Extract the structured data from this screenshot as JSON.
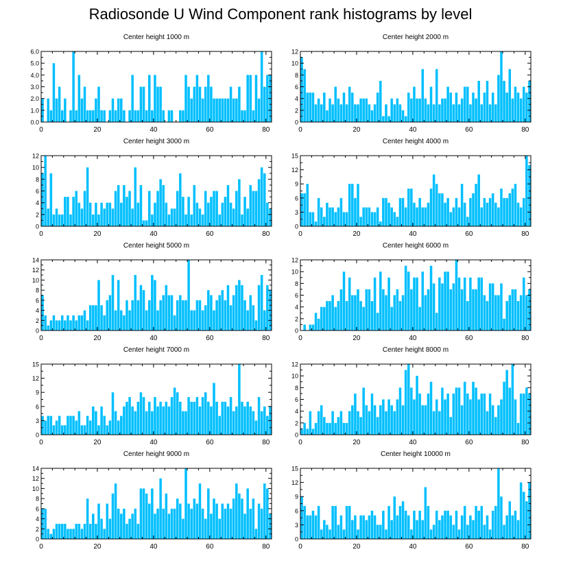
{
  "figure": {
    "title": "Radiosonde U Wind Component rank histograms by level",
    "bar_color": "#00bfff",
    "bar_edge_color": "#ffffff",
    "frame_color": "#000000"
  },
  "chart_data": [
    {
      "type": "bar",
      "title": "Center height 1000 m",
      "xlabel": "",
      "ylabel": "",
      "xlim": [
        0,
        82
      ],
      "ylim": [
        0,
        6
      ],
      "xticks": [
        0,
        20,
        40,
        60,
        80
      ],
      "xtick_labels": [
        "0",
        "20",
        "40",
        "60",
        "80"
      ],
      "yticks": [
        0,
        1,
        2,
        3,
        4,
        5,
        6
      ],
      "ytick_labels": [
        "0.0",
        "1.0",
        "2.0",
        "3.0",
        "4.0",
        "5.0",
        "6.0"
      ],
      "ytick_side": "left",
      "values": [
        2,
        0,
        2,
        1,
        5,
        2,
        3,
        1,
        2,
        0,
        1,
        6,
        1,
        4,
        2,
        3,
        1,
        1,
        1,
        2,
        3,
        1,
        1,
        0,
        1,
        2,
        1,
        2,
        2,
        1,
        0,
        1,
        4,
        1,
        1,
        3,
        3,
        1,
        4,
        1,
        4,
        3,
        3,
        1,
        0,
        1,
        1,
        0,
        0,
        1,
        1,
        4,
        3,
        2,
        3,
        4,
        3,
        2,
        3,
        4,
        3,
        2,
        2,
        2,
        2,
        2,
        2,
        3,
        2,
        2,
        3,
        1,
        1,
        4,
        4,
        1,
        4,
        2,
        6,
        3,
        4,
        4
      ]
    },
    {
      "type": "bar",
      "title": "Center height 2000 m",
      "xlabel": "",
      "ylabel": "",
      "xlim": [
        0,
        82
      ],
      "ylim": [
        0,
        12
      ],
      "xticks": [
        0,
        20,
        40,
        60,
        80
      ],
      "xtick_labels": [
        "0",
        "20",
        "40",
        "60",
        "80"
      ],
      "yticks": [
        0,
        2,
        4,
        6,
        8,
        10,
        12
      ],
      "ytick_labels": [
        "0",
        "2",
        "4",
        "6",
        "8",
        "10",
        "12"
      ],
      "ytick_side": "right",
      "values": [
        11,
        9,
        5,
        5,
        5,
        3,
        4,
        3,
        5,
        2,
        4,
        3,
        6,
        4,
        3,
        5,
        3,
        6,
        5,
        3,
        3,
        4,
        4,
        4,
        3,
        2,
        3,
        5,
        7,
        1,
        3,
        1,
        4,
        3,
        4,
        3,
        2,
        1,
        5,
        4,
        6,
        4,
        4,
        9,
        4,
        3,
        6,
        3,
        9,
        3,
        4,
        4,
        6,
        5,
        3,
        5,
        3,
        4,
        6,
        6,
        3,
        5,
        4,
        7,
        3,
        5,
        7,
        3,
        5,
        3,
        8,
        12,
        7,
        5,
        9,
        4,
        6,
        5,
        4,
        6,
        5,
        7
      ]
    },
    {
      "type": "bar",
      "title": "Center height 3000 m",
      "xlabel": "",
      "ylabel": "",
      "xlim": [
        0,
        82
      ],
      "ylim": [
        0,
        12
      ],
      "xticks": [
        0,
        20,
        40,
        60,
        80
      ],
      "xtick_labels": [
        "0",
        "20",
        "40",
        "60",
        "80"
      ],
      "yticks": [
        0,
        2,
        4,
        6,
        8,
        10,
        12
      ],
      "ytick_labels": [
        "0",
        "2",
        "4",
        "6",
        "8",
        "10",
        "12"
      ],
      "ytick_side": "left",
      "values": [
        9,
        12,
        3,
        9,
        2,
        3,
        2,
        2,
        5,
        5,
        2,
        5,
        6,
        4,
        3,
        6,
        10,
        4,
        2,
        4,
        2,
        4,
        3,
        4,
        4,
        3,
        6,
        7,
        4,
        7,
        5,
        6,
        3,
        10,
        4,
        7,
        1,
        1,
        6,
        2,
        4,
        6,
        8,
        7,
        4,
        2,
        3,
        3,
        6,
        9,
        5,
        2,
        5,
        2,
        7,
        4,
        3,
        2,
        6,
        4,
        5,
        6,
        6,
        2,
        4,
        5,
        7,
        4,
        3,
        6,
        8,
        2,
        5,
        3,
        7,
        6,
        6,
        8,
        10,
        9,
        4,
        3
      ]
    },
    {
      "type": "bar",
      "title": "Center height 4000 m",
      "xlabel": "",
      "ylabel": "",
      "xlim": [
        0,
        82
      ],
      "ylim": [
        0,
        15
      ],
      "xticks": [
        0,
        20,
        40,
        60,
        80
      ],
      "xtick_labels": [
        "0",
        "20",
        "40",
        "60",
        "80"
      ],
      "yticks": [
        0,
        3,
        6,
        9,
        12,
        15
      ],
      "ytick_labels": [
        "0",
        "3",
        "6",
        "9",
        "12",
        "15"
      ],
      "ytick_side": "right",
      "values": [
        7,
        7,
        9,
        3,
        3,
        1,
        6,
        4,
        2,
        5,
        4,
        4,
        3,
        4,
        6,
        3,
        3,
        9,
        9,
        6,
        9,
        2,
        4,
        4,
        4,
        3,
        3,
        4,
        1,
        6,
        6,
        5,
        4,
        3,
        2,
        6,
        6,
        4,
        8,
        8,
        5,
        4,
        6,
        4,
        4,
        5,
        8,
        11,
        9,
        7,
        7,
        5,
        6,
        3,
        4,
        6,
        4,
        9,
        5,
        2,
        6,
        7,
        9,
        11,
        4,
        6,
        5,
        6,
        7,
        5,
        4,
        8,
        6,
        6,
        7,
        8,
        9,
        5,
        4,
        6,
        15,
        13
      ]
    },
    {
      "type": "bar",
      "title": "Center height 5000 m",
      "xlabel": "",
      "ylabel": "",
      "xlim": [
        0,
        82
      ],
      "ylim": [
        0,
        14
      ],
      "xticks": [
        0,
        20,
        40,
        60,
        80
      ],
      "xtick_labels": [
        "0",
        "20",
        "40",
        "60",
        "80"
      ],
      "yticks": [
        0,
        2,
        4,
        6,
        8,
        10,
        12,
        14
      ],
      "ytick_labels": [
        "0",
        "2",
        "4",
        "6",
        "8",
        "10",
        "12",
        "14"
      ],
      "ytick_side": "left",
      "values": [
        7,
        3,
        1,
        2,
        3,
        2,
        2,
        3,
        2,
        3,
        2,
        3,
        2,
        3,
        3,
        4,
        2,
        5,
        5,
        5,
        10,
        5,
        3,
        6,
        7,
        11,
        4,
        10,
        4,
        3,
        6,
        4,
        6,
        11,
        6,
        9,
        8,
        4,
        6,
        11,
        10,
        4,
        6,
        7,
        9,
        7,
        7,
        3,
        6,
        7,
        6,
        6,
        14,
        4,
        4,
        6,
        6,
        4,
        5,
        8,
        7,
        4,
        6,
        7,
        8,
        6,
        9,
        5,
        7,
        9,
        10,
        9,
        6,
        4,
        7,
        5,
        2,
        9,
        11,
        4,
        9,
        8
      ]
    },
    {
      "type": "bar",
      "title": "Center height 6000 m",
      "xlabel": "",
      "ylabel": "",
      "xlim": [
        0,
        82
      ],
      "ylim": [
        0,
        12
      ],
      "xticks": [
        0,
        20,
        40,
        60,
        80
      ],
      "xtick_labels": [
        "0",
        "20",
        "40",
        "60",
        "80"
      ],
      "yticks": [
        0,
        2,
        4,
        6,
        8,
        10,
        12
      ],
      "ytick_labels": [
        "0",
        "2",
        "4",
        "6",
        "8",
        "10",
        "12"
      ],
      "ytick_side": "right",
      "values": [
        0,
        1,
        0,
        1,
        1,
        3,
        2,
        4,
        4,
        5,
        5,
        6,
        4,
        5,
        7,
        10,
        5,
        9,
        6,
        6,
        7,
        5,
        4,
        7,
        7,
        5,
        9,
        3,
        10,
        7,
        6,
        9,
        4,
        6,
        7,
        5,
        6,
        11,
        10,
        7,
        9,
        9,
        4,
        10,
        6,
        7,
        11,
        8,
        3,
        9,
        8,
        10,
        10,
        7,
        8,
        12,
        9,
        7,
        9,
        5,
        9,
        7,
        7,
        9,
        9,
        6,
        5,
        8,
        8,
        6,
        6,
        8,
        2,
        5,
        6,
        7,
        7,
        5,
        6,
        9,
        6,
        7
      ]
    },
    {
      "type": "bar",
      "title": "Center height 7000 m",
      "xlabel": "",
      "ylabel": "",
      "xlim": [
        0,
        82
      ],
      "ylim": [
        0,
        15
      ],
      "xticks": [
        0,
        20,
        40,
        60,
        80
      ],
      "xtick_labels": [
        "0",
        "20",
        "40",
        "60",
        "80"
      ],
      "yticks": [
        0,
        3,
        6,
        9,
        12,
        15
      ],
      "ytick_labels": [
        "0",
        "3",
        "6",
        "9",
        "12",
        "15"
      ],
      "ytick_side": "left",
      "values": [
        4,
        3,
        4,
        4,
        2,
        3,
        4,
        2,
        2,
        4,
        4,
        4,
        3,
        5,
        2,
        2,
        4,
        3,
        6,
        5,
        2,
        6,
        4,
        2,
        3,
        9,
        5,
        3,
        4,
        6,
        7,
        8,
        6,
        5,
        7,
        9,
        8,
        5,
        7,
        5,
        8,
        6,
        7,
        6,
        7,
        6,
        8,
        10,
        9,
        7,
        5,
        5,
        8,
        7,
        7,
        8,
        6,
        8,
        9,
        7,
        6,
        11,
        7,
        4,
        7,
        7,
        6,
        8,
        5,
        6,
        15,
        7,
        6,
        7,
        6,
        5,
        3,
        8,
        5,
        6,
        4,
        6
      ]
    },
    {
      "type": "bar",
      "title": "Center height 8000 m",
      "xlabel": "",
      "ylabel": "",
      "xlim": [
        0,
        82
      ],
      "ylim": [
        0,
        12
      ],
      "xticks": [
        0,
        20,
        40,
        60,
        80
      ],
      "xtick_labels": [
        "0",
        "20",
        "40",
        "60",
        "80"
      ],
      "yticks": [
        0,
        2,
        4,
        6,
        8,
        10,
        12
      ],
      "ytick_labels": [
        "0",
        "2",
        "4",
        "6",
        "8",
        "10",
        "12"
      ],
      "ytick_side": "right",
      "values": [
        1,
        2,
        1,
        4,
        1,
        2,
        4,
        5,
        3,
        2,
        2,
        4,
        2,
        3,
        4,
        2,
        2,
        4,
        5,
        7,
        4,
        3,
        8,
        5,
        4,
        7,
        5,
        3,
        5,
        6,
        4,
        6,
        5,
        4,
        6,
        8,
        5,
        11,
        12,
        8,
        6,
        10,
        7,
        5,
        5,
        7,
        9,
        4,
        6,
        4,
        8,
        6,
        7,
        3,
        7,
        8,
        8,
        5,
        9,
        7,
        6,
        9,
        8,
        6,
        7,
        7,
        4,
        7,
        5,
        3,
        5,
        6,
        9,
        11,
        8,
        12,
        6,
        2,
        7,
        7,
        8,
        7
      ]
    },
    {
      "type": "bar",
      "title": "Center height 9000 m",
      "xlabel": "",
      "ylabel": "",
      "xlim": [
        0,
        82
      ],
      "ylim": [
        0,
        14
      ],
      "xticks": [
        0,
        20,
        40,
        60,
        80
      ],
      "xtick_labels": [
        "0",
        "20",
        "40",
        "60",
        "80"
      ],
      "yticks": [
        0,
        2,
        4,
        6,
        8,
        10,
        12,
        14
      ],
      "ytick_labels": [
        "0",
        "2",
        "4",
        "6",
        "8",
        "10",
        "12",
        "14"
      ],
      "ytick_side": "left",
      "values": [
        6,
        6,
        2,
        1,
        2,
        3,
        3,
        3,
        3,
        2,
        2,
        2,
        3,
        3,
        2,
        3,
        8,
        3,
        5,
        3,
        7,
        4,
        2,
        7,
        4,
        9,
        11,
        6,
        5,
        6,
        3,
        4,
        5,
        6,
        3,
        10,
        10,
        9,
        7,
        10,
        5,
        6,
        12,
        6,
        9,
        5,
        6,
        6,
        8,
        7,
        4,
        14,
        7,
        6,
        8,
        7,
        11,
        6,
        4,
        10,
        5,
        8,
        7,
        4,
        7,
        6,
        7,
        6,
        8,
        11,
        9,
        8,
        5,
        10,
        6,
        8,
        2,
        7,
        6,
        11,
        10,
        5
      ]
    },
    {
      "type": "bar",
      "title": "Center height 10000 m",
      "xlabel": "",
      "ylabel": "",
      "xlim": [
        0,
        82
      ],
      "ylim": [
        0,
        15
      ],
      "xticks": [
        0,
        20,
        40,
        60,
        80
      ],
      "xtick_labels": [
        "0",
        "20",
        "40",
        "60",
        "80"
      ],
      "yticks": [
        0,
        3,
        6,
        9,
        12,
        15
      ],
      "ytick_labels": [
        "0",
        "3",
        "6",
        "9",
        "12",
        "15"
      ],
      "ytick_side": "right",
      "values": [
        9,
        7,
        5,
        5,
        6,
        5,
        7,
        2,
        4,
        3,
        2,
        7,
        7,
        3,
        5,
        2,
        7,
        7,
        4,
        5,
        2,
        5,
        5,
        4,
        5,
        6,
        5,
        3,
        3,
        6,
        2,
        7,
        4,
        9,
        5,
        7,
        8,
        6,
        5,
        2,
        6,
        4,
        6,
        4,
        11,
        7,
        2,
        3,
        6,
        4,
        5,
        6,
        6,
        5,
        3,
        6,
        2,
        5,
        7,
        3,
        5,
        4,
        7,
        6,
        7,
        3,
        5,
        2,
        6,
        7,
        15,
        9,
        3,
        5,
        8,
        5,
        6,
        4,
        12,
        10,
        8,
        12
      ]
    }
  ]
}
